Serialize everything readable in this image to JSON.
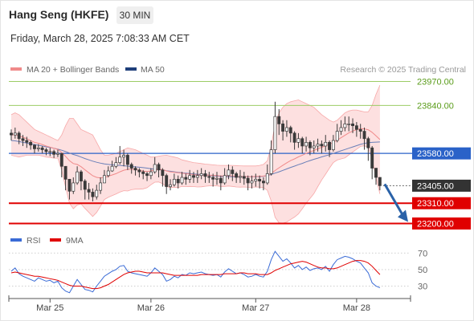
{
  "header": {
    "instrument": "Hang Seng (HKFE)",
    "interval": "30 MIN",
    "timestamp": "Friday, March 28, 2025 7:08:33 AM CET"
  },
  "colors": {
    "bollinger": "#f7a8a8",
    "bollinger_fill": "#fde0e0",
    "ma20": "#f08a8a",
    "ma50": "#6a7fb8",
    "candle": "#3a3a3a",
    "resistance": "#9ccc65",
    "pivot": "#2a62c8",
    "support": "#e00000",
    "current": "#333333",
    "rsi": "#3a6bd6",
    "rsi_ma": "#e00000",
    "arrow": "#2a62a8"
  },
  "chart_data": [
    {
      "type": "candlestick",
      "legend": [
        {
          "label": "MA 20 + Bollinger Bands",
          "color": "#f08a8a"
        },
        {
          "label": "MA 50",
          "color": "#1f3f7a"
        }
      ],
      "source": "Research © 2025 Trading Central",
      "x_ticks": [
        "Mar 25",
        "Mar 26",
        "Mar 27",
        "Mar 28"
      ],
      "ylim": [
        23150,
        24020
      ],
      "levels": [
        {
          "value": 23970,
          "label": "23970.00",
          "kind": "resistance"
        },
        {
          "value": 23840,
          "label": "23840.00",
          "kind": "resistance"
        },
        {
          "value": 23580,
          "label": "23580.00",
          "kind": "pivot"
        },
        {
          "value": 23405,
          "label": "23405.00",
          "kind": "current"
        },
        {
          "value": 23310,
          "label": "23310.00",
          "kind": "support"
        },
        {
          "value": 23200,
          "label": "23200.00",
          "kind": "support"
        }
      ],
      "close": [
        23680,
        23690,
        23660,
        23650,
        23640,
        23625,
        23605,
        23610,
        23600,
        23590,
        23590,
        23575,
        23580,
        23510,
        23440,
        23375,
        23420,
        23480,
        23430,
        23385,
        23370,
        23345,
        23380,
        23420,
        23460,
        23485,
        23510,
        23530,
        23560,
        23570,
        23520,
        23500,
        23490,
        23480,
        23470,
        23460,
        23480,
        23520,
        23490,
        23460,
        23400,
        23410,
        23440,
        23420,
        23450,
        23440,
        23460,
        23450,
        23460,
        23470,
        23455,
        23450,
        23440,
        23445,
        23420,
        23460,
        23490,
        23470,
        23450,
        23455,
        23445,
        23420,
        23430,
        23440,
        23430,
        23420,
        23470,
        23600,
        23780,
        23740,
        23700,
        23720,
        23690,
        23640,
        23660,
        23620,
        23640,
        23610,
        23620,
        23630,
        23620,
        23640,
        23600,
        23650,
        23700,
        23720,
        23740,
        23740,
        23730,
        23710,
        23700,
        23660,
        23610,
        23500,
        23450,
        23405
      ],
      "high": [
        23710,
        23720,
        23700,
        23680,
        23670,
        23650,
        23630,
        23630,
        23620,
        23610,
        23610,
        23600,
        23600,
        23580,
        23510,
        23440,
        23450,
        23510,
        23490,
        23440,
        23420,
        23390,
        23410,
        23450,
        23490,
        23510,
        23540,
        23560,
        23620,
        23600,
        23580,
        23530,
        23510,
        23500,
        23490,
        23480,
        23500,
        23560,
        23530,
        23500,
        23470,
        23440,
        23470,
        23460,
        23480,
        23470,
        23490,
        23480,
        23490,
        23500,
        23490,
        23480,
        23470,
        23480,
        23460,
        23500,
        23520,
        23510,
        23480,
        23490,
        23480,
        23460,
        23460,
        23470,
        23460,
        23450,
        23520,
        23650,
        23860,
        23820,
        23760,
        23760,
        23730,
        23700,
        23690,
        23670,
        23670,
        23650,
        23650,
        23660,
        23650,
        23680,
        23650,
        23680,
        23740,
        23760,
        23780,
        23780,
        23770,
        23750,
        23740,
        23720,
        23670,
        23620,
        23500,
        23430
      ],
      "low": [
        23650,
        23660,
        23630,
        23620,
        23610,
        23600,
        23580,
        23590,
        23580,
        23570,
        23565,
        23555,
        23560,
        23450,
        23380,
        23330,
        23360,
        23410,
        23380,
        23330,
        23330,
        23320,
        23330,
        23360,
        23420,
        23450,
        23480,
        23500,
        23520,
        23510,
        23490,
        23470,
        23460,
        23450,
        23440,
        23430,
        23440,
        23470,
        23450,
        23400,
        23360,
        23380,
        23400,
        23390,
        23410,
        23410,
        23420,
        23420,
        23420,
        23440,
        23420,
        23420,
        23400,
        23410,
        23380,
        23410,
        23440,
        23430,
        23420,
        23420,
        23410,
        23380,
        23390,
        23400,
        23390,
        23380,
        23410,
        23460,
        23580,
        23680,
        23650,
        23670,
        23640,
        23600,
        23610,
        23580,
        23590,
        23570,
        23580,
        23590,
        23580,
        23590,
        23560,
        23590,
        23640,
        23680,
        23700,
        23700,
        23690,
        23670,
        23660,
        23600,
        23540,
        23440,
        23410,
        23380
      ],
      "ma20": [
        23680,
        23682,
        23675,
        23668,
        23660,
        23650,
        23640,
        23635,
        23628,
        23620,
        23614,
        23607,
        23602,
        23585,
        23564,
        23540,
        23525,
        23520,
        23508,
        23491,
        23475,
        23459,
        23450,
        23447,
        23450,
        23456,
        23463,
        23470,
        23480,
        23489,
        23493,
        23494,
        23493,
        23488,
        23484,
        23482,
        23485,
        23492,
        23495,
        23492,
        23485,
        23480,
        23478,
        23475,
        23473,
        23470,
        23468,
        23465,
        23463,
        23462,
        23462,
        23462,
        23461,
        23460,
        23458,
        23458,
        23459,
        23458,
        23456,
        23455,
        23455,
        23454,
        23454,
        23455,
        23456,
        23457,
        23460,
        23471,
        23487,
        23502,
        23516,
        23529,
        23541,
        23550,
        23561,
        23570,
        23580,
        23588,
        23596,
        23605,
        23613,
        23621,
        23630,
        23640,
        23652,
        23665,
        23678,
        23691,
        23701,
        23709,
        23714,
        23713,
        23708,
        23694,
        23675,
        23655
      ],
      "bb_upper": [
        23790,
        23800,
        23790,
        23770,
        23750,
        23730,
        23710,
        23700,
        23690,
        23680,
        23670,
        23660,
        23650,
        23680,
        23730,
        23770,
        23770,
        23740,
        23710,
        23700,
        23690,
        23680,
        23640,
        23600,
        23570,
        23570,
        23575,
        23580,
        23590,
        23600,
        23610,
        23605,
        23600,
        23590,
        23580,
        23570,
        23560,
        23560,
        23565,
        23568,
        23570,
        23565,
        23560,
        23555,
        23545,
        23540,
        23535,
        23530,
        23528,
        23525,
        23522,
        23520,
        23518,
        23516,
        23515,
        23515,
        23515,
        23515,
        23514,
        23513,
        23512,
        23512,
        23512,
        23512,
        23515,
        23520,
        23540,
        23620,
        23740,
        23800,
        23830,
        23850,
        23860,
        23865,
        23870,
        23860,
        23850,
        23840,
        23830,
        23810,
        23790,
        23775,
        23760,
        23750,
        23760,
        23780,
        23800,
        23810,
        23815,
        23815,
        23810,
        23805,
        23805,
        23840,
        23900,
        23950
      ],
      "bb_lower": [
        23570,
        23565,
        23560,
        23565,
        23570,
        23570,
        23570,
        23570,
        23566,
        23560,
        23558,
        23554,
        23554,
        23490,
        23398,
        23310,
        23280,
        23300,
        23306,
        23282,
        23260,
        23238,
        23260,
        23294,
        23330,
        23342,
        23351,
        23360,
        23370,
        23378,
        23376,
        23383,
        23386,
        23386,
        23388,
        23394,
        23410,
        23424,
        23425,
        23416,
        23400,
        23395,
        23396,
        23395,
        23401,
        23400,
        23401,
        23400,
        23398,
        23399,
        23402,
        23404,
        23404,
        23404,
        23401,
        23401,
        23403,
        23401,
        23398,
        23397,
        23398,
        23396,
        23396,
        23398,
        23397,
        23394,
        23380,
        23322,
        23234,
        23204,
        23202,
        23208,
        23222,
        23235,
        23252,
        23280,
        23310,
        23336,
        23362,
        23400,
        23436,
        23467,
        23500,
        23530,
        23544,
        23550,
        23556,
        23572,
        23587,
        23603,
        23618,
        23621,
        23611,
        23548,
        23450,
        23360
      ],
      "ma50": [
        23650,
        23648,
        23644,
        23640,
        23636,
        23632,
        23628,
        23624,
        23620,
        23616,
        23612,
        23608,
        23603,
        23597,
        23590,
        23582,
        23574,
        23568,
        23560,
        23552,
        23545,
        23538,
        23532,
        23527,
        23523,
        23520,
        23518,
        23516,
        23515,
        23513,
        23511,
        23509,
        23507,
        23505,
        23503,
        23500,
        23497,
        23495,
        23493,
        23490,
        23486,
        23483,
        23480,
        23477,
        23475,
        23473,
        23471,
        23469,
        23467,
        23465,
        23463,
        23461,
        23459,
        23457,
        23455,
        23454,
        23454,
        23453,
        23453,
        23453,
        23453,
        23453,
        23453,
        23453,
        23454,
        23456,
        23460,
        23466,
        23473,
        23480,
        23488,
        23496,
        23504,
        23511,
        23519,
        23526,
        23534,
        23541,
        23548,
        23554,
        23561,
        23567,
        23573,
        23580,
        23587,
        23594,
        23601,
        23608,
        23615,
        23622,
        23629,
        23634,
        23638,
        23640,
        23641,
        23642
      ]
    },
    {
      "type": "line",
      "legend": [
        {
          "label": "RSI",
          "color": "#3a6bd6"
        },
        {
          "label": "9MA",
          "color": "#e00000"
        }
      ],
      "y_ticks": [
        "70",
        "50",
        "30"
      ],
      "guides": [
        70,
        50,
        30
      ],
      "ylim": [
        15,
        80
      ],
      "series": [
        {
          "name": "RSI",
          "values": [
            48,
            52,
            45,
            42,
            40,
            38,
            36,
            40,
            38,
            36,
            37,
            34,
            36,
            28,
            24,
            22,
            30,
            38,
            32,
            26,
            25,
            23,
            30,
            36,
            42,
            45,
            48,
            50,
            54,
            55,
            48,
            46,
            45,
            44,
            43,
            42,
            46,
            52,
            48,
            44,
            36,
            38,
            42,
            40,
            44,
            43,
            46,
            45,
            46,
            47,
            45,
            44,
            43,
            44,
            41,
            47,
            51,
            48,
            45,
            46,
            44,
            41,
            42,
            44,
            42,
            41,
            48,
            62,
            72,
            66,
            60,
            63,
            58,
            52,
            55,
            50,
            53,
            49,
            51,
            52,
            50,
            54,
            48,
            56,
            62,
            64,
            66,
            65,
            63,
            60,
            58,
            52,
            46,
            34,
            30,
            28
          ]
        },
        {
          "name": "9MA",
          "values": [
            46,
            47,
            46,
            45,
            44,
            43,
            42,
            42,
            41,
            40,
            39,
            38,
            37,
            35,
            33,
            31,
            30,
            30,
            30,
            29,
            28,
            27,
            27,
            28,
            30,
            32,
            35,
            38,
            41,
            44,
            46,
            47,
            48,
            48,
            47,
            46,
            46,
            46,
            46,
            46,
            45,
            44,
            43,
            43,
            43,
            43,
            43,
            43,
            43,
            44,
            44,
            44,
            44,
            44,
            44,
            45,
            45,
            45,
            45,
            46,
            46,
            45,
            45,
            45,
            44,
            44,
            44,
            46,
            49,
            51,
            53,
            55,
            57,
            58,
            59,
            60,
            59,
            57,
            55,
            53,
            52,
            52,
            51,
            51,
            52,
            54,
            56,
            58,
            60,
            61,
            61,
            60,
            58,
            54,
            49,
            44
          ]
        }
      ]
    }
  ]
}
